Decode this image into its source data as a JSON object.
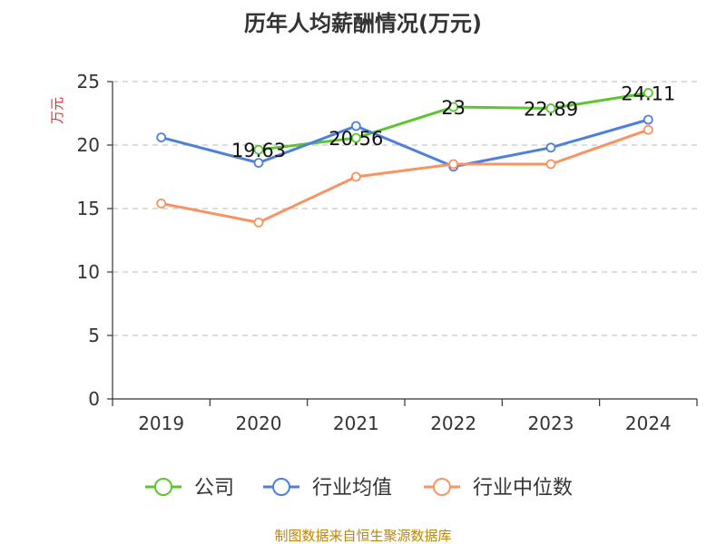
{
  "chart_data": {
    "type": "line",
    "title": "历年人均薪酬情况(万元)",
    "ylabel": "万元",
    "xlabel": "",
    "categories": [
      "2019",
      "2020",
      "2021",
      "2022",
      "2023",
      "2024"
    ],
    "ylim": [
      0,
      25
    ],
    "yticks": [
      "0",
      "5",
      "10",
      "15",
      "20",
      "25"
    ],
    "grid": true,
    "legend_position": "bottom",
    "series": [
      {
        "name": "公司",
        "color": "#5ec42f",
        "values": [
          null,
          19.63,
          20.56,
          23,
          22.89,
          24.11
        ],
        "labels": [
          "",
          "19.63",
          "20.56",
          "23",
          "22.89",
          "24.11"
        ]
      },
      {
        "name": "行业均值",
        "color": "#4e7fd9",
        "values": [
          20.6,
          18.6,
          21.5,
          18.3,
          19.8,
          22.0
        ]
      },
      {
        "name": "行业中位数",
        "color": "#f79463",
        "values": [
          15.4,
          13.9,
          17.5,
          18.5,
          18.5,
          21.2
        ]
      }
    ],
    "source": "制图数据来自恒生聚源数据库"
  }
}
